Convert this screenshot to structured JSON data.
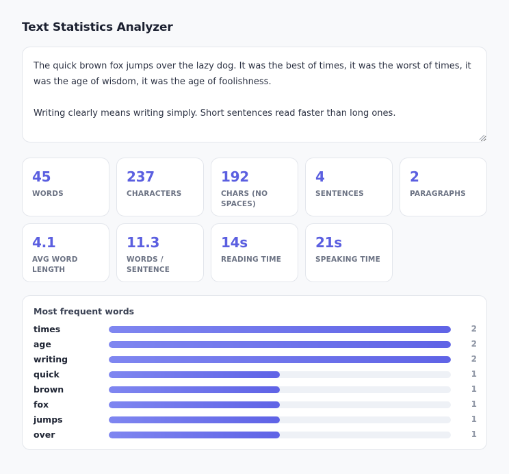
{
  "app": {
    "title": "Text Statistics Analyzer"
  },
  "input": {
    "text": "The quick brown fox jumps over the lazy dog. It was the best of times, it was the worst of times, it was the age of wisdom, it was the age of foolishness.\n\nWriting clearly means writing simply. Short sentences read faster than long ones."
  },
  "stats": [
    {
      "value": "45",
      "label": "WORDS"
    },
    {
      "value": "237",
      "label": "CHARACTERS"
    },
    {
      "value": "192",
      "label": "CHARS (NO SPACES)"
    },
    {
      "value": "4",
      "label": "SENTENCES"
    },
    {
      "value": "2",
      "label": "PARAGRAPHS"
    },
    {
      "value": "4.1",
      "label": "AVG WORD LENGTH"
    },
    {
      "value": "11.3",
      "label": "WORDS / SENTENCE"
    },
    {
      "value": "14s",
      "label": "READING TIME"
    },
    {
      "value": "21s",
      "label": "SPEAKING TIME"
    }
  ],
  "frequent": {
    "title": "Most frequent words",
    "words": [
      {
        "word": "times",
        "count": "2",
        "fraction": 1.0
      },
      {
        "word": "age",
        "count": "2",
        "fraction": 1.0
      },
      {
        "word": "writing",
        "count": "2",
        "fraction": 1.0
      },
      {
        "word": "quick",
        "count": "1",
        "fraction": 0.5
      },
      {
        "word": "brown",
        "count": "1",
        "fraction": 0.5
      },
      {
        "word": "fox",
        "count": "1",
        "fraction": 0.5
      },
      {
        "word": "jumps",
        "count": "1",
        "fraction": 0.5
      },
      {
        "word": "over",
        "count": "1",
        "fraction": 0.5
      }
    ]
  },
  "colors": {
    "accent": "#5b5fe0",
    "bar_track": "#eef1f6"
  }
}
